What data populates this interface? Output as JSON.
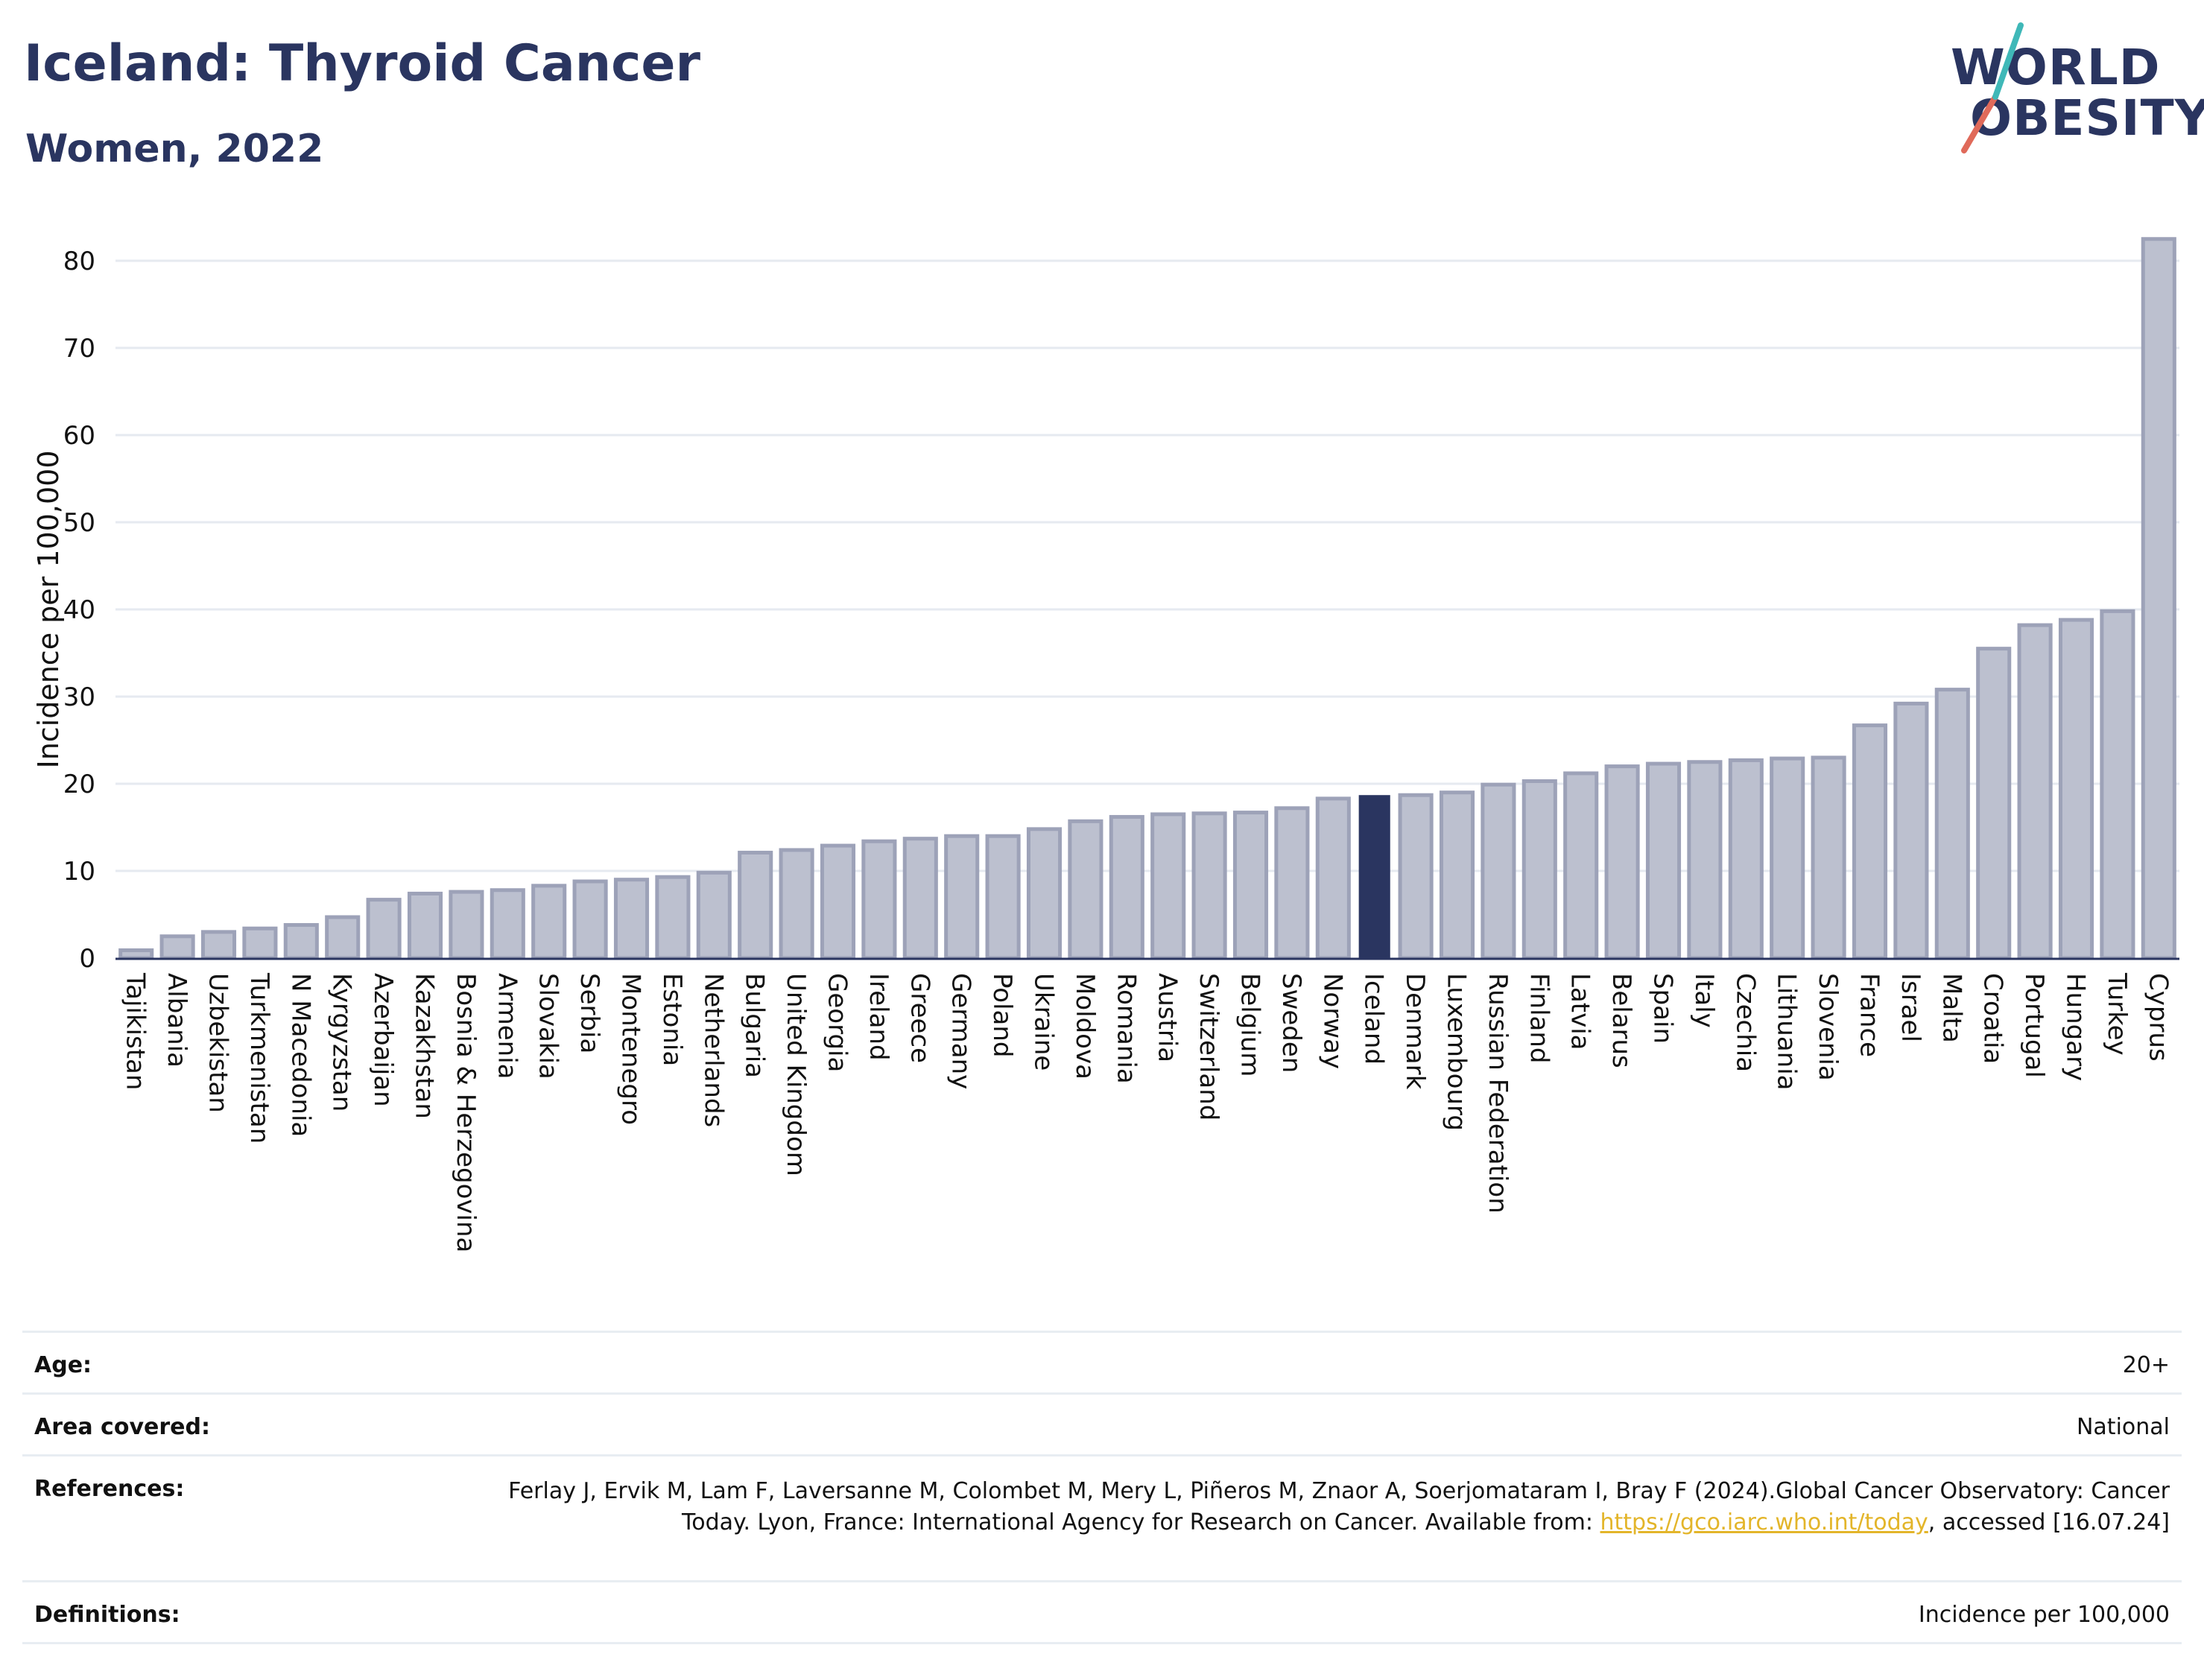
{
  "header": {
    "title": "Iceland: Thyroid Cancer",
    "subtitle": "Women, 2022"
  },
  "logo": {
    "line1": "WORLD",
    "line2": "OBESITY"
  },
  "colors": {
    "highlight_bar": "#2a3560",
    "other_bar_fill": "#bcc0cf",
    "other_bar_stroke": "#9da2b8",
    "title": "#2a3560",
    "gridline": "#e6eaf0",
    "link": "#e3b52a"
  },
  "chart_data": {
    "type": "bar",
    "ylabel": "Incidence per 100,000",
    "ylim": [
      0,
      85
    ],
    "yticks": [
      0,
      10,
      20,
      30,
      40,
      50,
      60,
      70,
      80
    ],
    "grid": true,
    "highlight": "Iceland",
    "categories": [
      "Tajikistan",
      "Albania",
      "Uzbekistan",
      "Turkmenistan",
      "N Macedonia",
      "Kyrgyzstan",
      "Azerbaijan",
      "Kazakhstan",
      "Bosnia & Herzegovina",
      "Armenia",
      "Slovakia",
      "Serbia",
      "Montenegro",
      "Estonia",
      "Netherlands",
      "Bulgaria",
      "United Kingdom",
      "Georgia",
      "Ireland",
      "Greece",
      "Germany",
      "Poland",
      "Ukraine",
      "Moldova",
      "Romania",
      "Austria",
      "Switzerland",
      "Belgium",
      "Sweden",
      "Norway",
      "Iceland",
      "Denmark",
      "Luxembourg",
      "Russian Federation",
      "Finland",
      "Latvia",
      "Belarus",
      "Spain",
      "Italy",
      "Czechia",
      "Lithuania",
      "Slovenia",
      "France",
      "Israel",
      "Malta",
      "Croatia",
      "Portugal",
      "Hungary",
      "Turkey",
      "Cyprus"
    ],
    "values": [
      0.9,
      2.5,
      3.0,
      3.4,
      3.8,
      4.7,
      6.7,
      7.4,
      7.6,
      7.8,
      8.3,
      8.8,
      9.0,
      9.3,
      9.8,
      12.1,
      12.4,
      12.9,
      13.4,
      13.7,
      14.0,
      14.0,
      14.8,
      15.7,
      16.2,
      16.5,
      16.6,
      16.7,
      17.2,
      18.3,
      18.7,
      18.7,
      19.0,
      19.9,
      20.3,
      21.2,
      22.0,
      22.3,
      22.5,
      22.7,
      22.9,
      23.0,
      26.7,
      29.2,
      30.8,
      35.5,
      38.2,
      38.8,
      39.8,
      82.5
    ]
  },
  "info": {
    "age_label": "Age:",
    "age_value": "20+",
    "area_label": "Area covered:",
    "area_value": "National",
    "references_label": "References:",
    "references_text_1": "Ferlay J, Ervik M, Lam F, Laversanne M, Colombet M, Mery L, Piñeros M, Znaor A, Soerjomataram I, Bray F (2024).Global Cancer Observatory: Cancer Today. Lyon, France: International Agency for Research on Cancer. Available from: ",
    "references_link": "https://gco.iarc.who.int/today",
    "references_text_2": ", accessed [16.07.24]",
    "definitions_label": "Definitions:",
    "definitions_value": "Incidence per 100,000"
  }
}
